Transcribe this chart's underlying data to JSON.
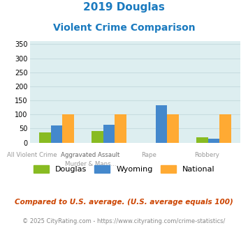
{
  "title_line1": "2019 Douglas",
  "title_line2": "Violent Crime Comparison",
  "title_color": "#1a7abf",
  "cat_labels_top": [
    "",
    "Aggravated Assault",
    "",
    ""
  ],
  "cat_labels_bot": [
    "All Violent Crime",
    "Murder & Mans...",
    "Rape",
    "Robbery"
  ],
  "douglas_values": [
    35,
    40,
    0,
    20
  ],
  "wyoming_values": [
    60,
    63,
    132,
    15
  ],
  "national_values": [
    100,
    100,
    100,
    100
  ],
  "douglas_color": "#88bb22",
  "wyoming_color": "#4488cc",
  "national_color": "#ffaa33",
  "ylim": [
    0,
    360
  ],
  "yticks": [
    0,
    50,
    100,
    150,
    200,
    250,
    300,
    350
  ],
  "grid_color": "#c8dde0",
  "bg_color": "#ddeef0",
  "legend_labels": [
    "Douglas",
    "Wyoming",
    "National"
  ],
  "footnote1": "Compared to U.S. average. (U.S. average equals 100)",
  "footnote2": "© 2025 CityRating.com - https://www.cityrating.com/crime-statistics/",
  "footnote1_color": "#cc4400",
  "footnote2_color": "#888888",
  "footnote2_link_color": "#4488cc"
}
